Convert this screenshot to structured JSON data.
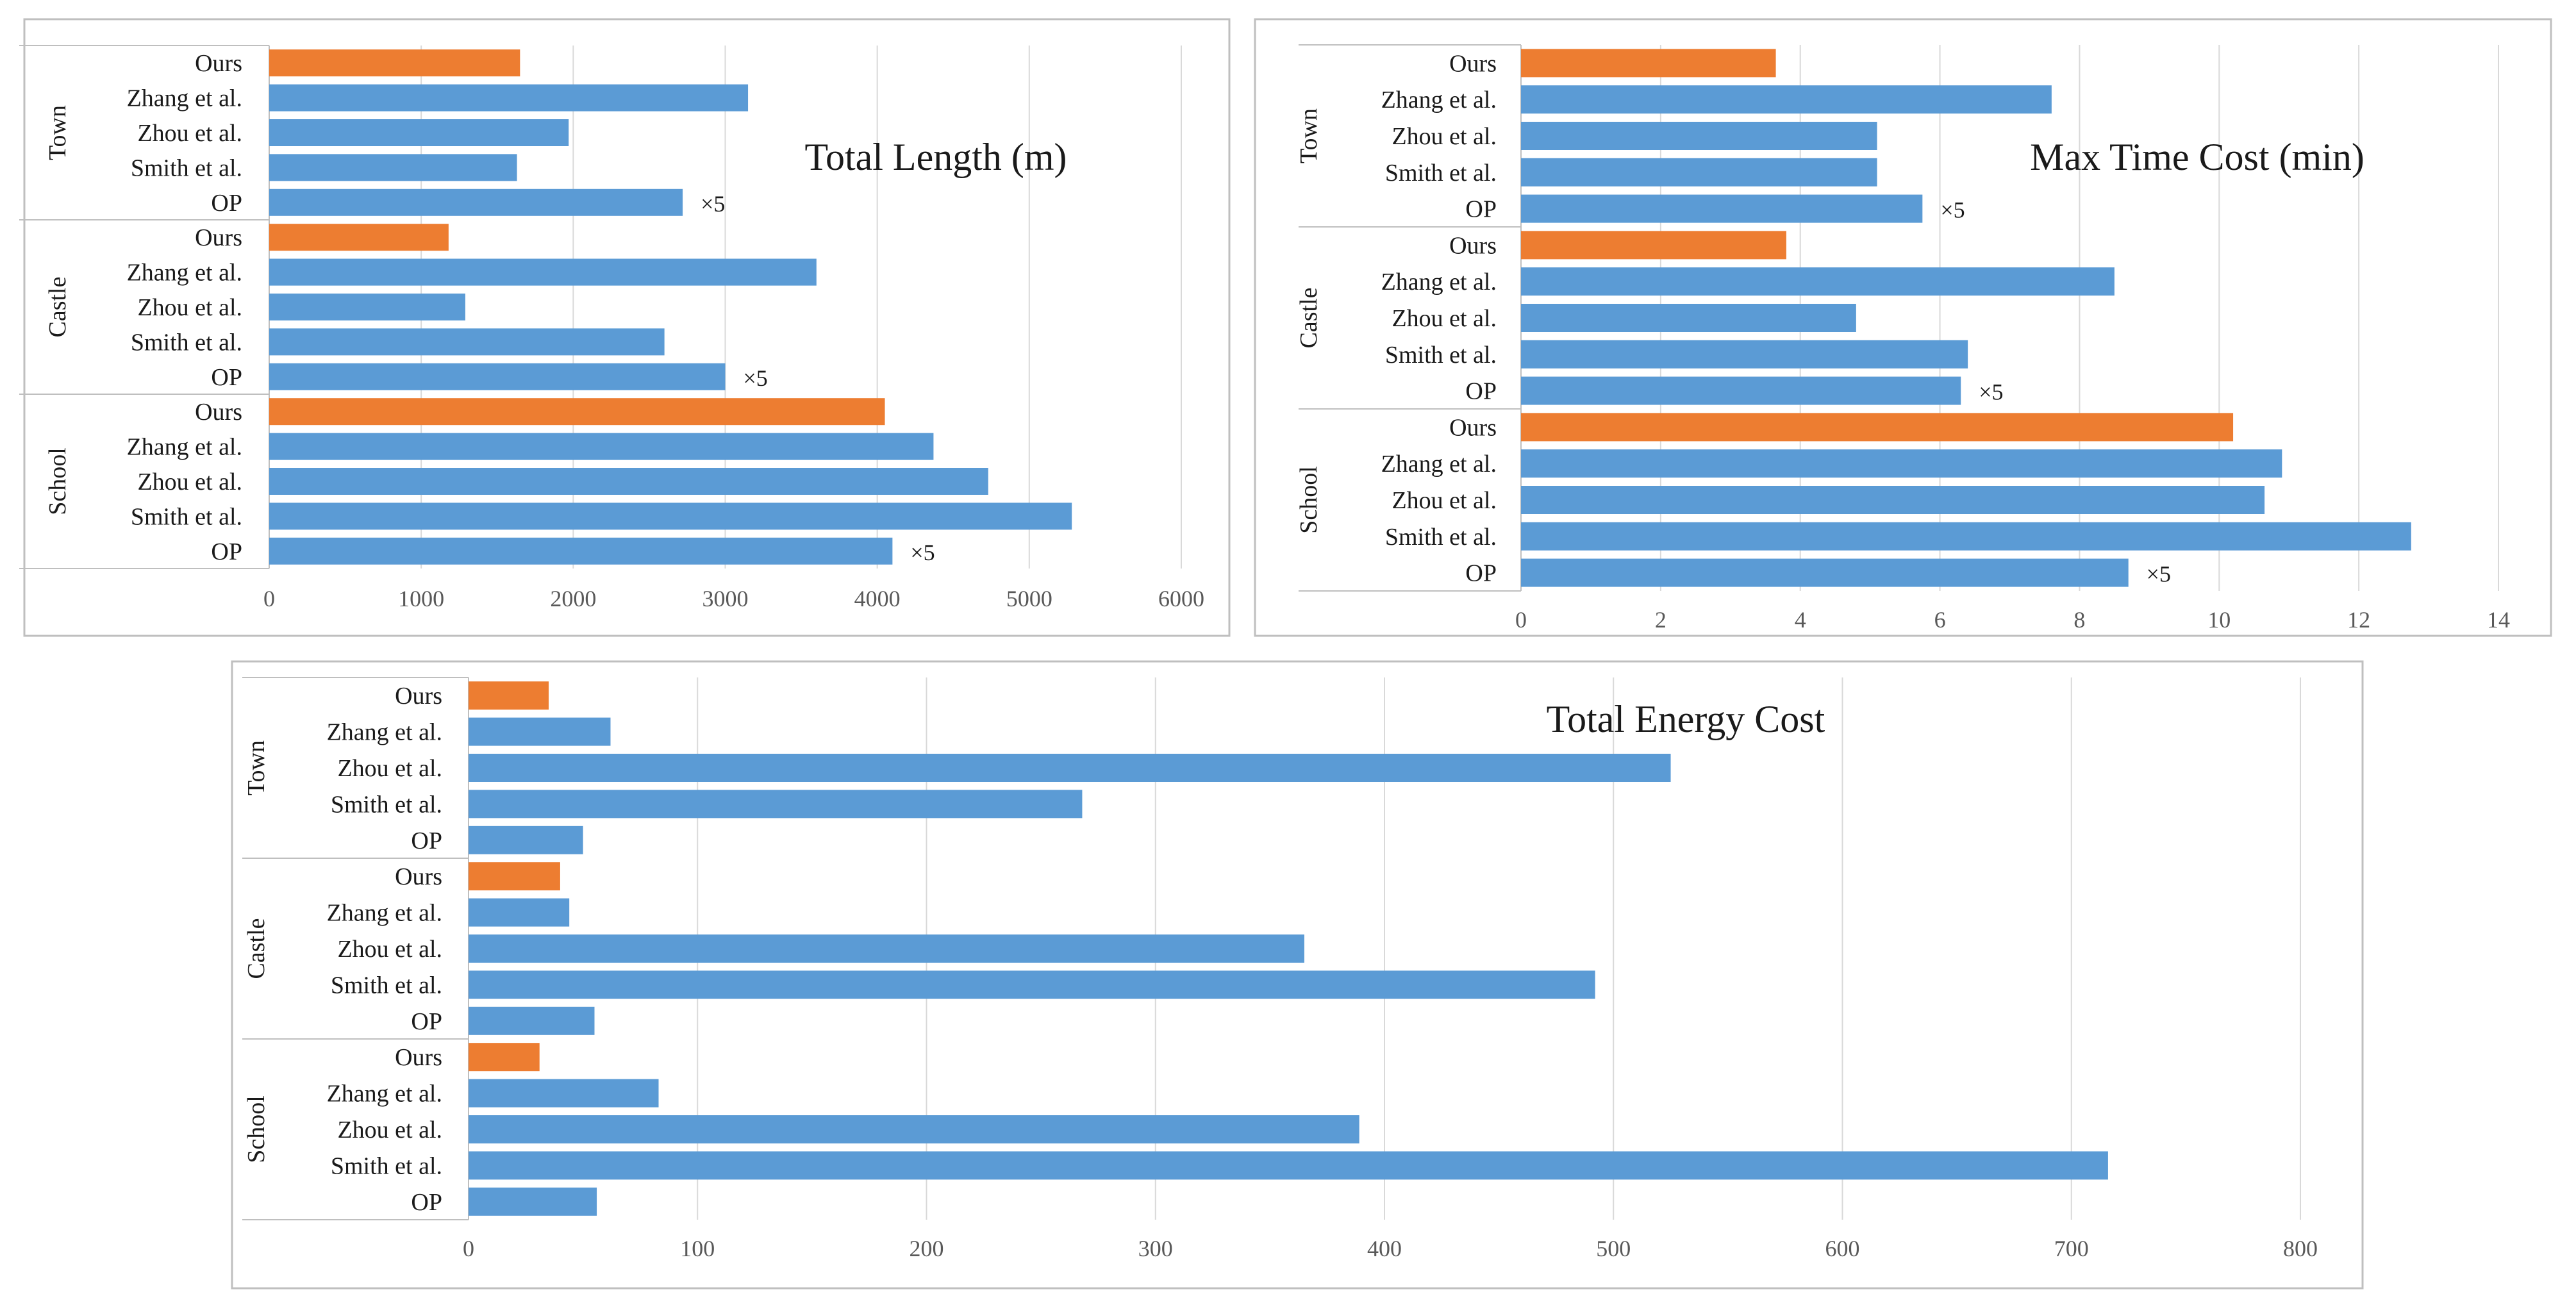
{
  "colors": {
    "ours": "#ED7D31",
    "other": "#5B9BD5",
    "grid": "#D9D9D9",
    "frame": "#BFBFBF",
    "sep": "#BFBFBF"
  },
  "chart_data": [
    {
      "type": "bar",
      "orientation": "horizontal",
      "title": "Total Length (m)",
      "xlim": [
        0,
        6000
      ],
      "xticks": [
        "0",
        "1000",
        "2000",
        "3000",
        "4000",
        "5000",
        "6000"
      ],
      "tick_values": [
        0,
        1000,
        2000,
        3000,
        4000,
        5000,
        6000
      ],
      "groups": [
        {
          "name": "Town",
          "bars": [
            {
              "label": "Ours",
              "value": 1650,
              "ours": true
            },
            {
              "label": "Zhang et al.",
              "value": 3150
            },
            {
              "label": "Zhou et al.",
              "value": 1970
            },
            {
              "label": "Smith et al.",
              "value": 1630
            },
            {
              "label": "OP",
              "value": 2720,
              "note": "×5"
            }
          ]
        },
        {
          "name": "Castle",
          "bars": [
            {
              "label": "Ours",
              "value": 1180,
              "ours": true
            },
            {
              "label": "Zhang et al.",
              "value": 3600
            },
            {
              "label": "Zhou et al.",
              "value": 1290
            },
            {
              "label": "Smith et al.",
              "value": 2600
            },
            {
              "label": "OP",
              "value": 3000,
              "note": "×5"
            }
          ]
        },
        {
          "name": "School",
          "bars": [
            {
              "label": "Ours",
              "value": 4050,
              "ours": true
            },
            {
              "label": "Zhang et al.",
              "value": 4370
            },
            {
              "label": "Zhou et al.",
              "value": 4730
            },
            {
              "label": "Smith et al.",
              "value": 5280
            },
            {
              "label": "OP",
              "value": 4100,
              "note": "×5"
            }
          ]
        }
      ]
    },
    {
      "type": "bar",
      "orientation": "horizontal",
      "title": "Max Time Cost (min)",
      "xlim": [
        0,
        14
      ],
      "xticks": [
        "0",
        "2",
        "4",
        "6",
        "8",
        "10",
        "12",
        "14"
      ],
      "tick_values": [
        0,
        2,
        4,
        6,
        8,
        10,
        12,
        14
      ],
      "groups": [
        {
          "name": "Town",
          "bars": [
            {
              "label": "Ours",
              "value": 3.65,
              "ours": true
            },
            {
              "label": "Zhang et al.",
              "value": 7.6
            },
            {
              "label": "Zhou et al.",
              "value": 5.1
            },
            {
              "label": "Smith et al.",
              "value": 5.1
            },
            {
              "label": "OP",
              "value": 5.75,
              "note": "×5"
            }
          ]
        },
        {
          "name": "Castle",
          "bars": [
            {
              "label": "Ours",
              "value": 3.8,
              "ours": true
            },
            {
              "label": "Zhang et al.",
              "value": 8.5
            },
            {
              "label": "Zhou et al.",
              "value": 4.8
            },
            {
              "label": "Smith et al.",
              "value": 6.4
            },
            {
              "label": "OP",
              "value": 6.3,
              "note": "×5"
            }
          ]
        },
        {
          "name": "School",
          "bars": [
            {
              "label": "Ours",
              "value": 10.2,
              "ours": true
            },
            {
              "label": "Zhang et al.",
              "value": 10.9
            },
            {
              "label": "Zhou et al.",
              "value": 10.65
            },
            {
              "label": "Smith et al.",
              "value": 12.75
            },
            {
              "label": "OP",
              "value": 8.7,
              "note": "×5"
            }
          ]
        }
      ]
    },
    {
      "type": "bar",
      "orientation": "horizontal",
      "title": "Total Energy Cost",
      "xlim": [
        0,
        800
      ],
      "xticks": [
        "0",
        "100",
        "200",
        "300",
        "400",
        "500",
        "600",
        "700",
        "800"
      ],
      "tick_values": [
        0,
        100,
        200,
        300,
        400,
        500,
        600,
        700,
        800
      ],
      "groups": [
        {
          "name": "Town",
          "bars": [
            {
              "label": "Ours",
              "value": 35,
              "ours": true
            },
            {
              "label": "Zhang et al.",
              "value": 62
            },
            {
              "label": "Zhou et al.",
              "value": 525
            },
            {
              "label": "Smith et al.",
              "value": 268
            },
            {
              "label": "OP",
              "value": 50
            }
          ]
        },
        {
          "name": "Castle",
          "bars": [
            {
              "label": "Ours",
              "value": 40,
              "ours": true
            },
            {
              "label": "Zhang et al.",
              "value": 44
            },
            {
              "label": "Zhou et al.",
              "value": 365
            },
            {
              "label": "Smith et al.",
              "value": 492
            },
            {
              "label": "OP",
              "value": 55
            }
          ]
        },
        {
          "name": "School",
          "bars": [
            {
              "label": "Ours",
              "value": 31,
              "ours": true
            },
            {
              "label": "Zhang et al.",
              "value": 83
            },
            {
              "label": "Zhou et al.",
              "value": 389
            },
            {
              "label": "Smith et al.",
              "value": 716
            },
            {
              "label": "OP",
              "value": 56
            }
          ]
        }
      ]
    }
  ]
}
